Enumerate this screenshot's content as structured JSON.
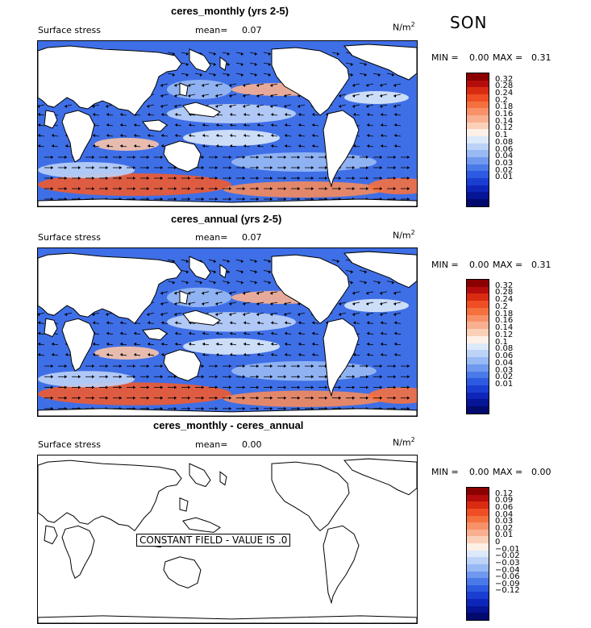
{
  "season": "SON",
  "chart_data": [
    {
      "type": "heatmap",
      "title": "ceres_monthly (yrs 2-5)",
      "field_label": "Surface stress",
      "mean_label": "mean=",
      "mean_value": "0.07",
      "units": "N/m",
      "units_sup": "2",
      "min_label": "MIN =",
      "min_value": "0.00",
      "max_label": "MAX =",
      "max_value": "0.31",
      "colorbar_ticks": [
        "0.32",
        "0.28",
        "0.24",
        "0.2",
        "0.18",
        "0.16",
        "0.14",
        "0.12",
        "0.1",
        "0.08",
        "0.06",
        "0.04",
        "0.03",
        "0.02",
        "0.01"
      ],
      "colorbar_colors": [
        "#8b0000",
        "#b50c0c",
        "#d92b12",
        "#ef4d24",
        "#f5703f",
        "#f89167",
        "#f9b091",
        "#fbd0b8",
        "#fdf0e6",
        "#dce9fa",
        "#bcd2f7",
        "#98b9f4",
        "#6f99ee",
        "#4a7ae8",
        "#2c5ae0",
        "#1a3ed2",
        "#0d26b9",
        "#061496",
        "#020a6e"
      ]
    },
    {
      "type": "heatmap",
      "title": "ceres_annual (yrs 2-5)",
      "field_label": "Surface stress",
      "mean_label": "mean=",
      "mean_value": "0.07",
      "units": "N/m",
      "units_sup": "2",
      "min_label": "MIN =",
      "min_value": "0.00",
      "max_label": "MAX =",
      "max_value": "0.31",
      "colorbar_ticks": [
        "0.32",
        "0.28",
        "0.24",
        "0.2",
        "0.18",
        "0.16",
        "0.14",
        "0.12",
        "0.1",
        "0.08",
        "0.06",
        "0.04",
        "0.03",
        "0.02",
        "0.01"
      ],
      "colorbar_colors": [
        "#8b0000",
        "#b50c0c",
        "#d92b12",
        "#ef4d24",
        "#f5703f",
        "#f89167",
        "#f9b091",
        "#fbd0b8",
        "#fdf0e6",
        "#dce9fa",
        "#bcd2f7",
        "#98b9f4",
        "#6f99ee",
        "#4a7ae8",
        "#2c5ae0",
        "#1a3ed2",
        "#0d26b9",
        "#061496",
        "#020a6e"
      ]
    },
    {
      "type": "heatmap",
      "title": "ceres_monthly - ceres_annual",
      "field_label": "Surface stress",
      "mean_label": "mean=",
      "mean_value": "0.00",
      "units": "N/m",
      "units_sup": "2",
      "min_label": "MIN =",
      "min_value": "0.00",
      "max_label": "MAX =",
      "max_value": "0.00",
      "constant_text": "CONSTANT FIELD - VALUE IS .0",
      "colorbar_ticks": [
        "0.12",
        "0.09",
        "0.06",
        "0.04",
        "0.03",
        "0.02",
        "0.01",
        "0",
        "−0.01",
        "−0.02",
        "−0.03",
        "−0.04",
        "−0.06",
        "−0.09",
        "−0.12"
      ],
      "colorbar_colors": [
        "#8b0000",
        "#b50c0c",
        "#d92b12",
        "#ef4d24",
        "#f5703f",
        "#f89167",
        "#f9b091",
        "#fbd0b8",
        "#fdf0e6",
        "#dce9fa",
        "#bcd2f7",
        "#98b9f4",
        "#6f99ee",
        "#4a7ae8",
        "#2c5ae0",
        "#1a3ed2",
        "#0d26b9",
        "#061496",
        "#020a6e"
      ]
    }
  ]
}
